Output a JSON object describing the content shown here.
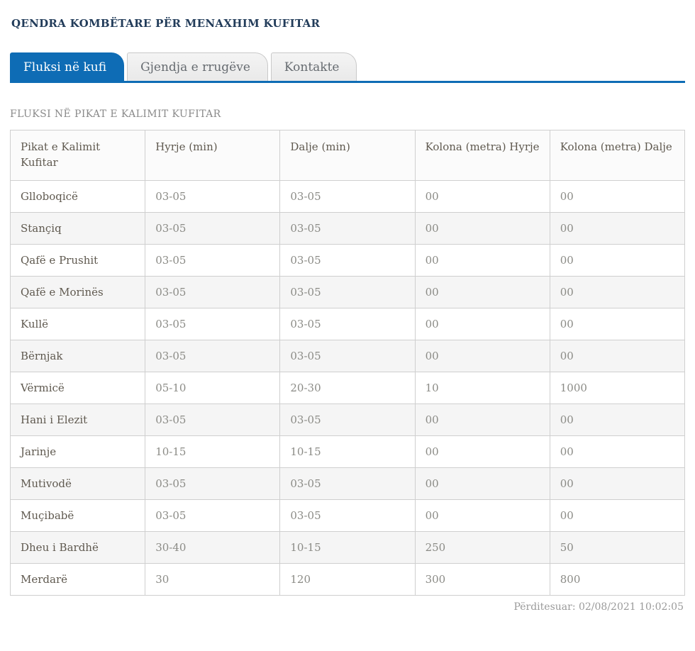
{
  "header": {
    "title": "QENDRA KOMBËTARE PËR MENAXHIM KUFITAR"
  },
  "tabs": [
    {
      "label": "Fluksi në kufi",
      "active": true
    },
    {
      "label": "Gjendja e rrugëve",
      "active": false
    },
    {
      "label": "Kontakte",
      "active": false
    }
  ],
  "section": {
    "heading": "FLUKSI NË PIKAT E KALIMIT KUFITAR"
  },
  "table": {
    "headers": [
      "Pikat e Kalimit Kufitar",
      "Hyrje (min)",
      "Dalje (min)",
      "Kolona (metra) Hyrje",
      "Kolona (metra) Dalje"
    ],
    "rows": [
      [
        "Glloboqicë",
        "03-05",
        "03-05",
        "00",
        "00"
      ],
      [
        "Stançiq",
        "03-05",
        "03-05",
        "00",
        "00"
      ],
      [
        "Qafë e Prushit",
        "03-05",
        "03-05",
        "00",
        "00"
      ],
      [
        "Qafë e Morinës",
        "03-05",
        "03-05",
        "00",
        "00"
      ],
      [
        "Kullë",
        "03-05",
        "03-05",
        "00",
        "00"
      ],
      [
        "Bërnjak",
        "03-05",
        "03-05",
        "00",
        "00"
      ],
      [
        "Vërmicë",
        "05-10",
        "20-30",
        "10",
        "1000"
      ],
      [
        "Hani i Elezit",
        "03-05",
        "03-05",
        "00",
        "00"
      ],
      [
        "Jarinje",
        "10-15",
        "10-15",
        "00",
        "00"
      ],
      [
        "Mutivodë",
        "03-05",
        "03-05",
        "00",
        "00"
      ],
      [
        "Muçibabë",
        "03-05",
        "03-05",
        "00",
        "00"
      ],
      [
        "Dheu i Bardhë",
        "30-40",
        "10-15",
        "250",
        "50"
      ],
      [
        "Merdarë",
        "30",
        "120",
        "300",
        "800"
      ]
    ]
  },
  "footer": {
    "updated": "Përditesuar: 02/08/2021 10:02:05"
  },
  "colors": {
    "accent_blue": "#0e6cb5",
    "title_navy": "#223c5a",
    "tab_inactive_bg": "#ededed",
    "table_border": "#cfcfcf",
    "zebra_stripe": "#f5f5f5"
  }
}
